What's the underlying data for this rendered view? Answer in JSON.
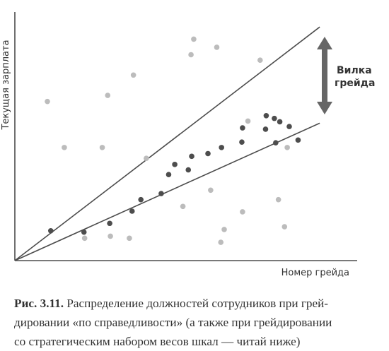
{
  "chart_data": {
    "type": "scatter",
    "xlabel": "Номер грейда",
    "ylabel": "Текущая зарплата",
    "annotation": [
      "Вилка",
      "грейда"
    ],
    "series": [
      {
        "points": [
          [
            53,
            44
          ],
          [
            102,
            42
          ],
          [
            140,
            55
          ],
          [
            173,
            73
          ],
          [
            186,
            90
          ],
          [
            216,
            99
          ],
          [
            227,
            127
          ],
          [
            236,
            142
          ],
          [
            256,
            134
          ],
          [
            261,
            154
          ],
          [
            285,
            158
          ],
          [
            305,
            167
          ],
          [
            335,
            175
          ],
          [
            336,
            196
          ],
          [
            370,
            194
          ],
          [
            371,
            214
          ],
          [
            383,
            210
          ],
          [
            385,
            174
          ],
          [
            391,
            205
          ],
          [
            405,
            198
          ],
          [
            418,
            178
          ]
        ]
      },
      {
        "points": [
          [
            48,
            235
          ],
          [
            73,
            167
          ],
          [
            103,
            33
          ],
          [
            129,
            167
          ],
          [
            137,
            244
          ],
          [
            141,
            36
          ],
          [
            169,
            33
          ],
          [
            175,
            274
          ],
          [
            194,
            151
          ],
          [
            248,
            80
          ],
          [
            260,
            304
          ],
          [
            264,
            327
          ],
          [
            289,
            104
          ],
          [
            298,
            315
          ],
          [
            304,
            27
          ],
          [
            309,
            46
          ],
          [
            336,
            72
          ],
          [
            344,
            206
          ],
          [
            362,
            296
          ],
          [
            389,
            90
          ],
          [
            398,
            50
          ],
          [
            402,
            167
          ]
        ]
      }
    ],
    "lines": [
      {
        "x": [
          0,
          450
        ],
        "y": [
          0,
          345
        ]
      },
      {
        "x": [
          0,
          450
        ],
        "y": [
          0,
          203
        ]
      }
    ],
    "xlim": [
      0,
      500
    ],
    "ylim": [
      0,
      365
    ],
    "colors": {
      "inside": "#4d4d4d",
      "outside": "#bcbcbc",
      "lines": "#4d4d4d",
      "arrow": "#666666",
      "axis": "#4d4d4d"
    }
  },
  "caption": {
    "prefix": "Рис. 3.11.",
    "line1": " Распределение должностей сотрудников при грей-",
    "line2": "дировании «по справедливости» (а также при грейдировании",
    "line3": "со стратегическим набором весов шкал — читай ниже)"
  }
}
